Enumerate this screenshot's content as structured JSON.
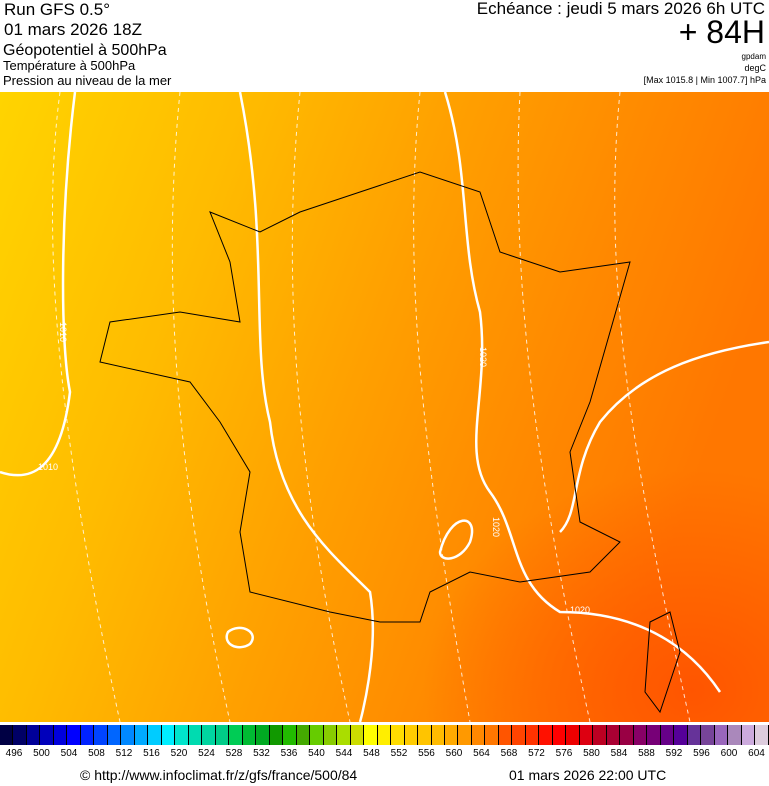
{
  "header": {
    "run": "Run GFS 0.5°",
    "run_date": "01 mars 2026 18Z",
    "field1": "Géopotentiel à 500hPa",
    "field2": "Température à 500hPa",
    "field3": "Pression au niveau de la mer",
    "echeance": "Echéance : jeudi 5 mars 2026 6h UTC",
    "lead": "+ 84H",
    "unit1": "gpdam",
    "unit2": "degC",
    "pressure_range": "[Max 1015.8 | Min 1007.7] hPa"
  },
  "map": {
    "isobar_labels": [
      "1010",
      "1010",
      "1020",
      "1020",
      "1020"
    ],
    "colors": {
      "west": "#ffcc00",
      "center": "#ffaa00",
      "east": "#ff8800",
      "southeast": "#ff5500",
      "contour": "#ffffff",
      "border": "#000000"
    }
  },
  "colorbar": {
    "labels": [
      "496",
      "500",
      "504",
      "508",
      "512",
      "516",
      "520",
      "524",
      "528",
      "532",
      "536",
      "540",
      "544",
      "548",
      "552",
      "556",
      "560",
      "564",
      "568",
      "572",
      "576",
      "580",
      "584",
      "588",
      "592",
      "596",
      "600",
      "604"
    ],
    "colors": [
      "#000044",
      "#000066",
      "#000099",
      "#0000bb",
      "#0000dd",
      "#0000ff",
      "#0022ff",
      "#0044ff",
      "#0066ff",
      "#0088ff",
      "#00aaff",
      "#00ccff",
      "#00eeff",
      "#00e5cc",
      "#00dbb0",
      "#00d5a0",
      "#00cc88",
      "#00cc55",
      "#00bb33",
      "#00aa22",
      "#119900",
      "#22bb00",
      "#44aa00",
      "#66cc00",
      "#88cc00",
      "#aadd00",
      "#ccdd00",
      "#ffff00",
      "#ffee00",
      "#ffdd00",
      "#ffcc00",
      "#ffc400",
      "#ffbb00",
      "#ffaa00",
      "#ff9900",
      "#ff8800",
      "#ff7700",
      "#ff5500",
      "#ff4400",
      "#ff3300",
      "#ff1100",
      "#ff0000",
      "#ee0000",
      "#dd0011",
      "#bb0022",
      "#aa0033",
      "#990044",
      "#880066",
      "#770077",
      "#660088",
      "#550099",
      "#663399",
      "#774499",
      "#9966bb",
      "#aa88bb",
      "#ccaadd",
      "#ddccdd"
    ]
  },
  "footer": {
    "url": "© http://www.infoclimat.fr/z/gfs/france/500/84",
    "issued": "01 mars 2026 22:00 UTC"
  }
}
